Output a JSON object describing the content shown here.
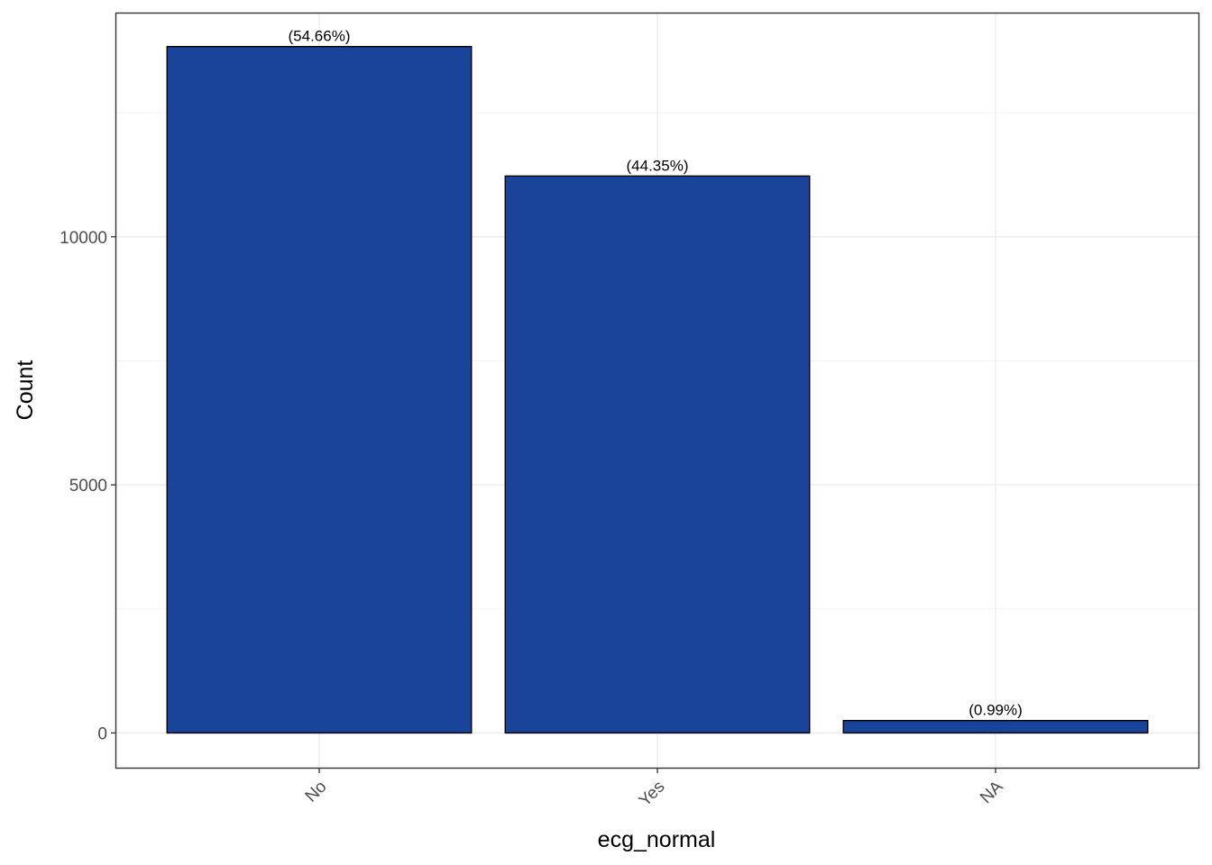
{
  "chart_data": {
    "type": "bar",
    "title": "",
    "xlabel": "ecg_normal",
    "ylabel": "Count",
    "categories": [
      "No",
      "Yes",
      "NA"
    ],
    "values": [
      13834,
      11225,
      250
    ],
    "data_labels": [
      "(54.66%)",
      "(44.35%)",
      "(0.99%)"
    ],
    "ylim": [
      -700,
      14500
    ],
    "y_ticks": [
      0,
      5000,
      10000
    ],
    "y_tick_labels": [
      "0",
      "5000",
      "10000"
    ],
    "y_minor_ticks": [
      2500,
      7500,
      12500
    ],
    "grid": true,
    "legend": "none",
    "x_tick_rotation": "45 degrees",
    "colors": {
      "bar_fill": "#1a4499",
      "bar_outline": "#000000",
      "grid_major": "#ebebeb",
      "grid_minor": "#f4f4f4",
      "panel_border": "#333333",
      "tick_text": "#4d4d4d"
    }
  }
}
